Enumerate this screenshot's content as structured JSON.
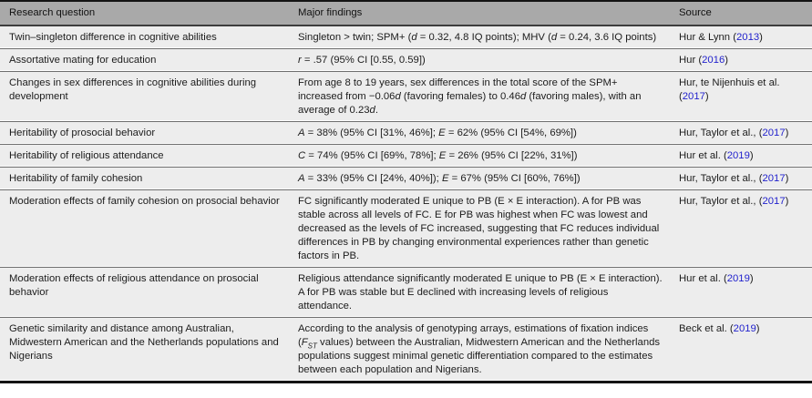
{
  "table": {
    "headers": [
      "Research question",
      "Major findings",
      "Source"
    ],
    "colors": {
      "header_bg": "#a9a9a9",
      "row_bg": "#ededed",
      "link": "#2222cd",
      "border_dark": "#141414"
    },
    "rows": [
      {
        "question": "Twin–singleton difference in cognitive abilities",
        "findings": [
          {
            "t": "Singleton > twin; SPM+ ("
          },
          {
            "t": "d",
            "s": "i"
          },
          {
            "t": " = 0.32, 4.8 IQ points); MHV ("
          },
          {
            "t": "d",
            "s": "i"
          },
          {
            "t": " = 0.24, 3.6 IQ points)"
          }
        ],
        "source": [
          {
            "t": "Hur & Lynn ("
          },
          {
            "t": "2013",
            "s": "link"
          },
          {
            "t": ")"
          }
        ]
      },
      {
        "question": "Assortative mating for education",
        "findings": [
          {
            "t": "r",
            "s": "i"
          },
          {
            "t": " = .57 (95% CI [0.55, 0.59])"
          }
        ],
        "source": [
          {
            "t": "Hur ("
          },
          {
            "t": "2016",
            "s": "link"
          },
          {
            "t": ")"
          }
        ]
      },
      {
        "question": "Changes in sex differences in cognitive abilities during development",
        "findings": [
          {
            "t": "From age 8 to 19 years, sex differences in the total score of the SPM+ increased from −0.06"
          },
          {
            "t": "d",
            "s": "i"
          },
          {
            "t": " (favoring females) to 0.46"
          },
          {
            "t": "d",
            "s": "i"
          },
          {
            "t": " (favoring males), with an average of 0.23"
          },
          {
            "t": "d",
            "s": "i"
          },
          {
            "t": "."
          }
        ],
        "source": [
          {
            "t": "Hur, te Nijenhuis et al. ("
          },
          {
            "t": "2017",
            "s": "link"
          },
          {
            "t": ")"
          }
        ]
      },
      {
        "question": "Heritability of prosocial behavior",
        "findings": [
          {
            "t": "A",
            "s": "i"
          },
          {
            "t": " = 38% (95% CI [31%, 46%]; "
          },
          {
            "t": "E",
            "s": "i"
          },
          {
            "t": " = 62% (95% CI [54%, 69%])"
          }
        ],
        "source": [
          {
            "t": "Hur, Taylor et al., ("
          },
          {
            "t": "2017",
            "s": "link"
          },
          {
            "t": ")"
          }
        ]
      },
      {
        "question": "Heritability of religious attendance",
        "findings": [
          {
            "t": "C",
            "s": "i"
          },
          {
            "t": " = 74% (95% CI [69%, 78%]; "
          },
          {
            "t": "E",
            "s": "i"
          },
          {
            "t": " = 26% (95% CI [22%, 31%])"
          }
        ],
        "source": [
          {
            "t": "Hur et al. ("
          },
          {
            "t": "2019",
            "s": "link"
          },
          {
            "t": ")"
          }
        ]
      },
      {
        "question": "Heritability of family cohesion",
        "findings": [
          {
            "t": "A",
            "s": "i"
          },
          {
            "t": " = 33% (95% CI [24%, 40%]); "
          },
          {
            "t": "E",
            "s": "i"
          },
          {
            "t": " = 67% (95% CI [60%, 76%])"
          }
        ],
        "source": [
          {
            "t": "Hur, Taylor et al., ("
          },
          {
            "t": "2017",
            "s": "link"
          },
          {
            "t": ")"
          }
        ]
      },
      {
        "question": "Moderation effects of family cohesion on prosocial behavior",
        "findings": [
          {
            "t": "FC significantly moderated E unique to PB (E × E interaction). A for PB was stable across all levels of FC. E for PB was highest when FC was lowest and decreased as the levels of FC increased, suggesting that FC reduces individual differences in PB by changing environmental experiences rather than genetic factors in PB."
          }
        ],
        "source": [
          {
            "t": "Hur, Taylor et al., ("
          },
          {
            "t": "2017",
            "s": "link"
          },
          {
            "t": ")"
          }
        ]
      },
      {
        "question": "Moderation effects of religious attendance on prosocial behavior",
        "findings": [
          {
            "t": "Religious attendance significantly moderated E unique to PB (E × E interaction). A for PB was stable but E declined with increasing levels of religious attendance."
          }
        ],
        "source": [
          {
            "t": "Hur et al. ("
          },
          {
            "t": "2019",
            "s": "link"
          },
          {
            "t": ")"
          }
        ]
      },
      {
        "question": "Genetic similarity and distance among Australian, Midwestern American and the Netherlands populations and Nigerians",
        "findings": [
          {
            "t": "According to the analysis of genotyping arrays, estimations of fixation indices ("
          },
          {
            "t": "F",
            "s": "i"
          },
          {
            "t": "ST",
            "s": "isub"
          },
          {
            "t": " values) between the Australian, Midwestern American and the Netherlands populations suggest minimal genetic differentiation compared to the estimates between each population and Nigerians."
          }
        ],
        "source": [
          {
            "t": "Beck et al. ("
          },
          {
            "t": "2019",
            "s": "link"
          },
          {
            "t": ")"
          }
        ]
      }
    ]
  }
}
